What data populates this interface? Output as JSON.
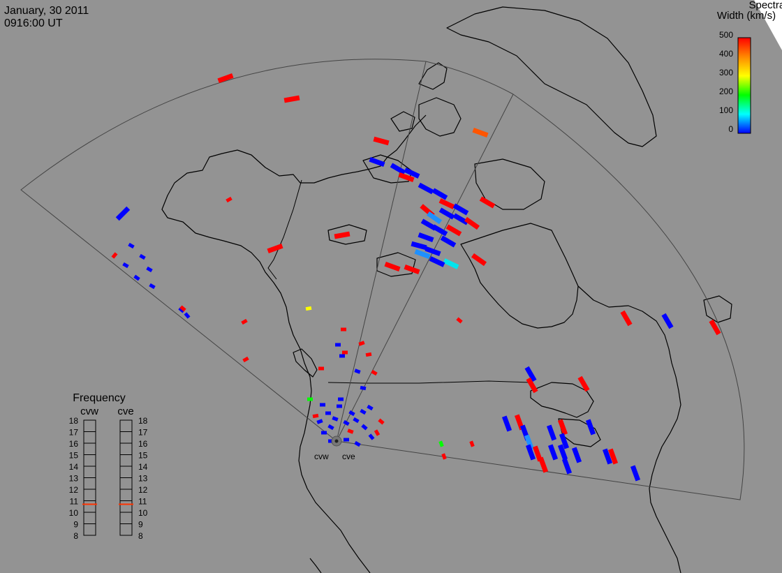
{
  "header": {
    "date": "January, 30 2011",
    "time": "0916:00 UT"
  },
  "colorbar": {
    "title_line1": "Spectral",
    "title_line2": "Width (km/s)",
    "ticks": [
      "500",
      "400",
      "300",
      "200",
      "100",
      "0"
    ],
    "colors": [
      "#ff0000",
      "#ff8800",
      "#ffff00",
      "#00ff00",
      "#00ffff",
      "#0000ff"
    ]
  },
  "frequency_panel": {
    "title": "Frequency",
    "radar_left": "cvw",
    "radar_right": "cve",
    "scale": [
      "18",
      "17",
      "16",
      "15",
      "14",
      "13",
      "12",
      "11",
      "10",
      "9",
      "8"
    ],
    "cvw_mhz": 10.7,
    "cve_mhz": 10.7,
    "marker_color": "#ff3300"
  },
  "radar_sites": {
    "west": "cvw",
    "east": "cve"
  },
  "colors": {
    "background": "#939393",
    "land_outline": "#000000",
    "fov_outline": "#444444"
  }
}
